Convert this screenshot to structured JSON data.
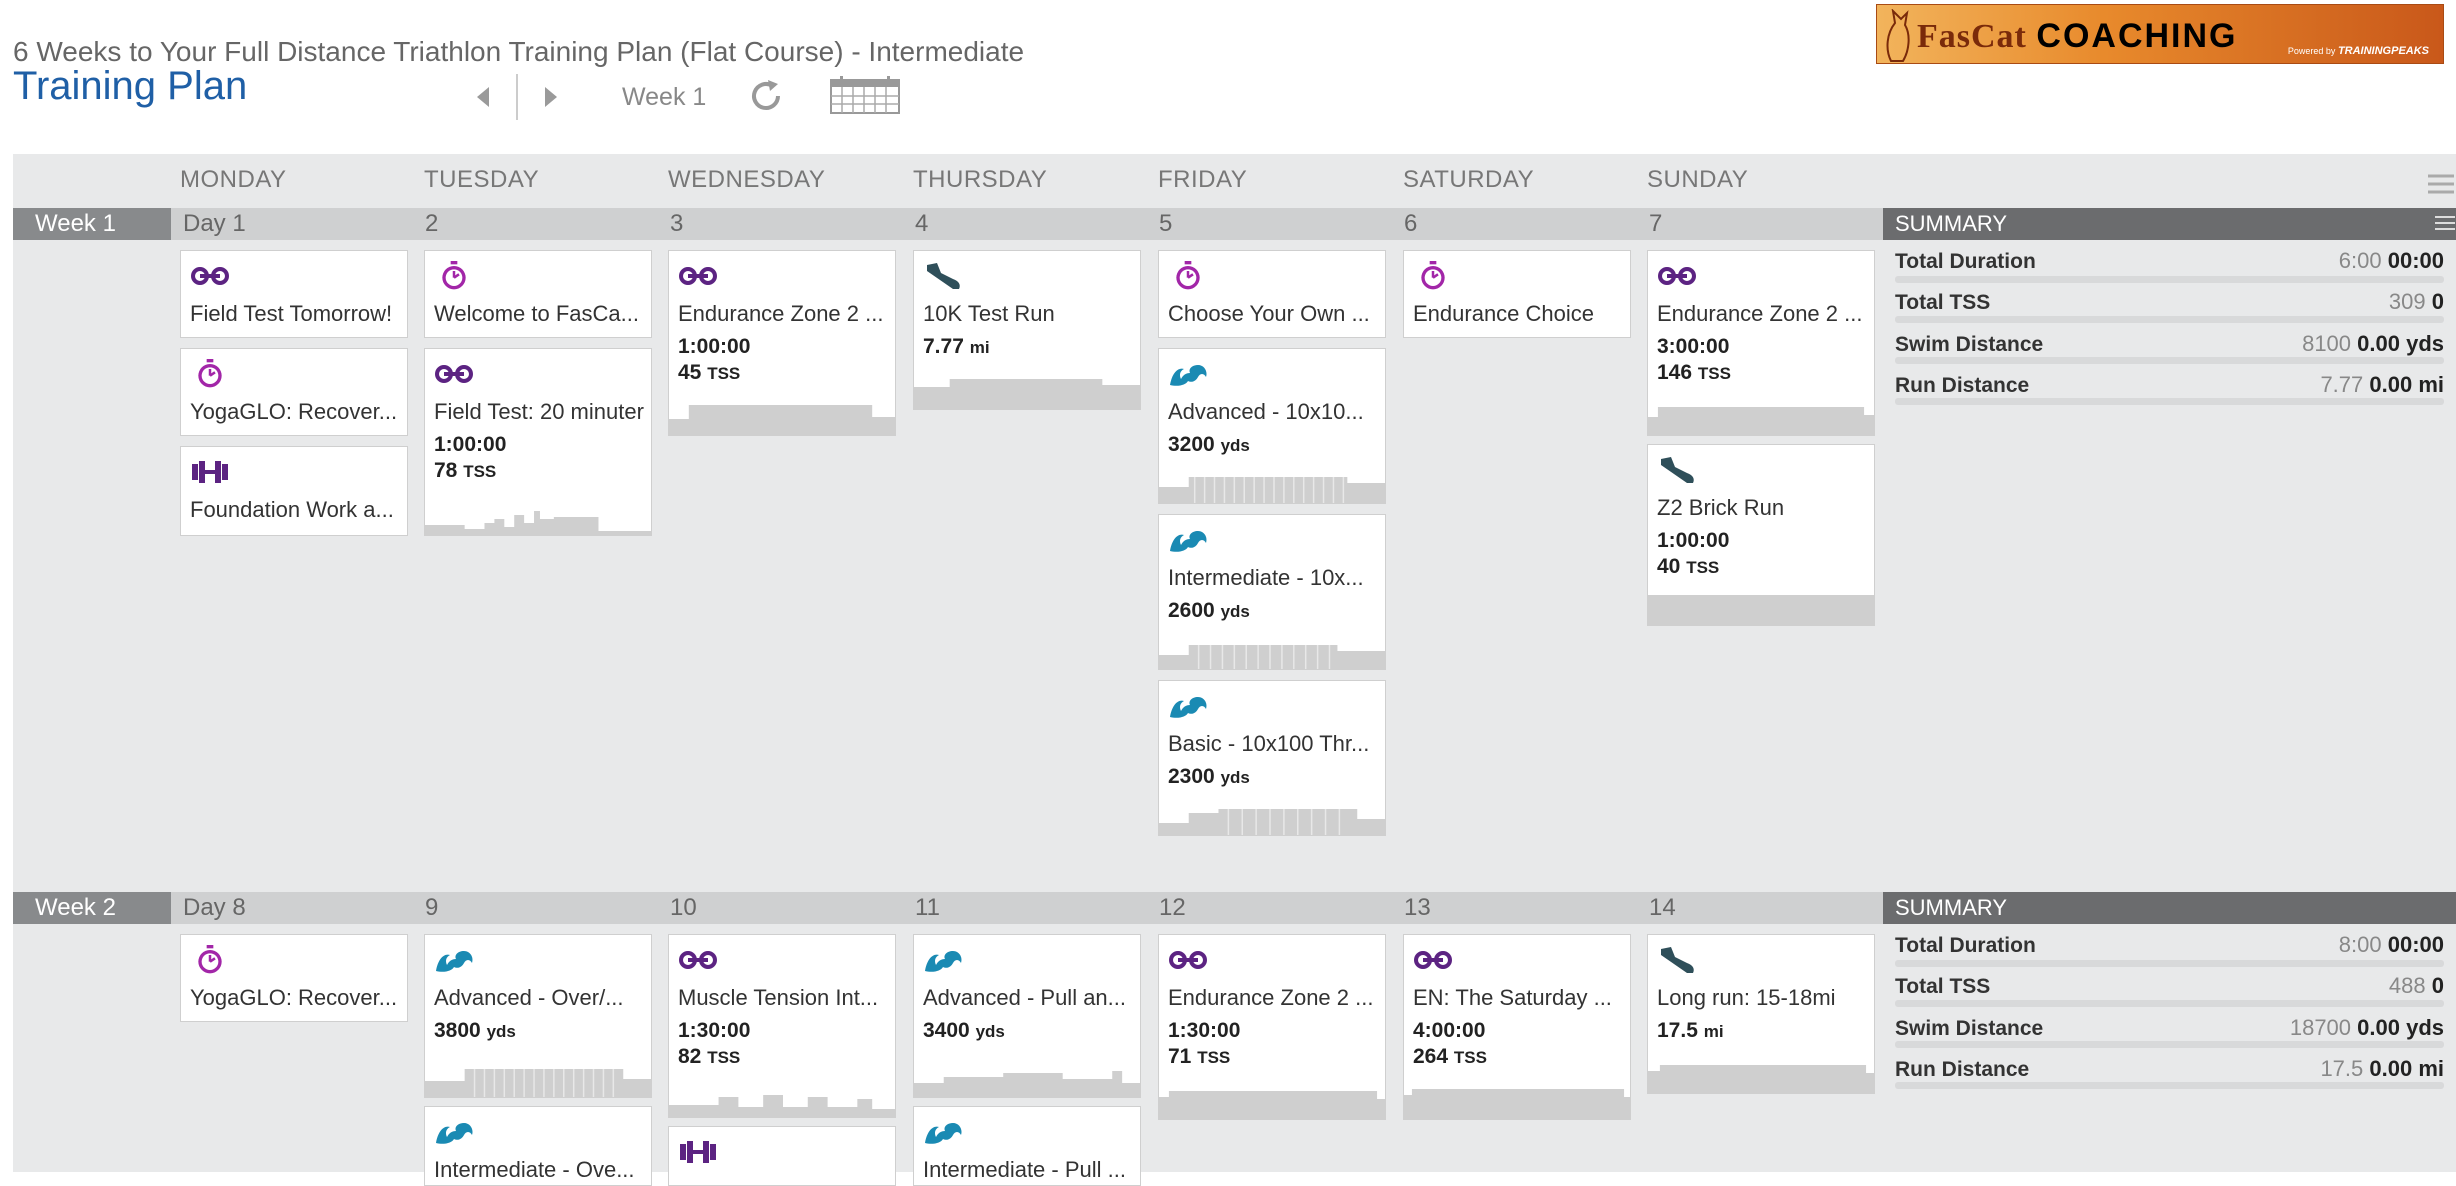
{
  "header": {
    "plan_title": "6 Weeks to Your Full Distance Triathlon Training Plan (Flat Course) - Intermediate",
    "page_title": "Training Plan",
    "week_label": "Week 1"
  },
  "logo": {
    "brand_a": "FasCat",
    "brand_b": "COACHING",
    "powered": "Powered by",
    "powered_brand": "TRAININGPEAKS"
  },
  "days": [
    "MONDAY",
    "TUESDAY",
    "WEDNESDAY",
    "THURSDAY",
    "FRIDAY",
    "SATURDAY",
    "SUNDAY"
  ],
  "colors": {
    "bike": "#5c2382",
    "timer": "#a226a8",
    "strength": "#5c2382",
    "run": "#2f4f5a",
    "swim": "#1a8ab3"
  },
  "weeks": [
    {
      "name": "Week 1",
      "day_nums": [
        "Day 1",
        "2",
        "3",
        "4",
        "5",
        "6",
        "7"
      ],
      "summary": {
        "title": "SUMMARY",
        "rows": [
          {
            "label": "Total Duration",
            "planned": "6:00",
            "done": "00:00"
          },
          {
            "label": "Total TSS",
            "planned": "309",
            "done": "0"
          },
          {
            "label": "Swim Distance",
            "planned": "8100",
            "done": "0.00 yds"
          },
          {
            "label": "Run Distance",
            "planned": "7.77",
            "done": "0.00 mi"
          }
        ]
      }
    },
    {
      "name": "Week 2",
      "day_nums": [
        "Day 8",
        "9",
        "10",
        "11",
        "12",
        "13",
        "14"
      ],
      "summary": {
        "title": "SUMMARY",
        "rows": [
          {
            "label": "Total Duration",
            "planned": "8:00",
            "done": "00:00"
          },
          {
            "label": "Total TSS",
            "planned": "488",
            "done": "0"
          },
          {
            "label": "Swim Distance",
            "planned": "18700",
            "done": "0.00 yds"
          },
          {
            "label": "Run Distance",
            "planned": "17.5",
            "done": "0.00 mi"
          }
        ]
      }
    }
  ],
  "workouts": {
    "w1": {
      "mon": [
        {
          "icon": "bike-icon",
          "title": "Field Test Tomorrow!"
        },
        {
          "icon": "stopwatch-icon",
          "title": "YogaGLO: Recover..."
        },
        {
          "icon": "dumbbell-icon",
          "title": "Foundation Work a..."
        }
      ],
      "tue": [
        {
          "icon": "stopwatch-icon",
          "title": "Welcome to FasCa..."
        },
        {
          "icon": "bike-icon",
          "title": "Field Test: 20 minuter",
          "m1": "1:00:00",
          "m2": "78",
          "u2": "TSS"
        }
      ],
      "wed": [
        {
          "icon": "bike-icon",
          "title": "Endurance Zone 2 ...",
          "m1": "1:00:00",
          "m2": "45",
          "u2": "TSS"
        }
      ],
      "thu": [
        {
          "icon": "shoe-icon",
          "title": "10K Test Run",
          "m1": "7.77",
          "u1": "mi"
        }
      ],
      "fri": [
        {
          "icon": "stopwatch-icon",
          "title": "Choose Your Own ..."
        },
        {
          "icon": "swim-icon",
          "title": "Advanced - 10x10...",
          "m1": "3200",
          "u1": "yds"
        },
        {
          "icon": "swim-icon",
          "title": "Intermediate - 10x...",
          "m1": "2600",
          "u1": "yds"
        },
        {
          "icon": "swim-icon",
          "title": "Basic - 10x100 Thr...",
          "m1": "2300",
          "u1": "yds"
        }
      ],
      "sat": [
        {
          "icon": "stopwatch-icon",
          "title": "Endurance Choice"
        }
      ],
      "sun": [
        {
          "icon": "bike-icon",
          "title": "Endurance Zone 2 ...",
          "m1": "3:00:00",
          "m2": "146",
          "u2": "TSS"
        },
        {
          "icon": "shoe-icon",
          "title": "Z2 Brick Run",
          "m1": "1:00:00",
          "m2": "40",
          "u2": "TSS"
        }
      ]
    },
    "w2": {
      "mon": [
        {
          "icon": "stopwatch-icon",
          "title": "YogaGLO: Recover..."
        }
      ],
      "tue": [
        {
          "icon": "swim-icon",
          "title": "Advanced - Over/...",
          "m1": "3800",
          "u1": "yds"
        },
        {
          "icon": "swim-icon",
          "title": "Intermediate - Ove..."
        }
      ],
      "wed": [
        {
          "icon": "bike-icon",
          "title": "Muscle Tension Int...",
          "m1": "1:30:00",
          "m2": "82",
          "u2": "TSS"
        },
        {
          "icon": "dumbbell-icon",
          "title": ""
        }
      ],
      "thu": [
        {
          "icon": "swim-icon",
          "title": "Advanced - Pull an...",
          "m1": "3400",
          "u1": "yds"
        },
        {
          "icon": "swim-icon",
          "title": "Intermediate - Pull ..."
        }
      ],
      "fri": [
        {
          "icon": "bike-icon",
          "title": "Endurance Zone 2 ...",
          "m1": "1:30:00",
          "m2": "71",
          "u2": "TSS"
        }
      ],
      "sat": [
        {
          "icon": "bike-icon",
          "title": "EN: The Saturday ...",
          "m1": "4:00:00",
          "m2": "264",
          "u2": "TSS"
        }
      ],
      "sun": [
        {
          "icon": "shoe-icon",
          "title": "Long run: 15-18mi",
          "m1": "17.5",
          "u1": "mi"
        }
      ]
    }
  }
}
